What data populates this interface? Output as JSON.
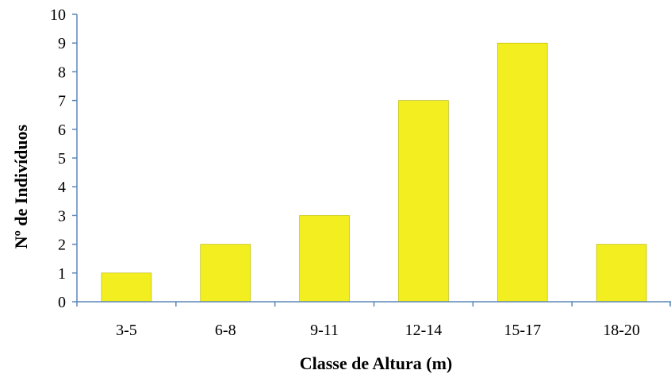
{
  "chart_data": {
    "type": "bar",
    "categories": [
      "3-5",
      "6-8",
      "9-11",
      "12-14",
      "15-17",
      "18-20"
    ],
    "values": [
      1,
      2,
      3,
      7,
      9,
      2
    ],
    "title": "",
    "xlabel": "Classe de Altura (m)",
    "ylabel": "Nº de Indivíduos",
    "ylim": [
      0,
      10
    ],
    "y_ticks": [
      "0",
      "1",
      "2",
      "3",
      "4",
      "5",
      "6",
      "7",
      "8",
      "9",
      "10"
    ],
    "grid": false,
    "legend": "none",
    "colors": {
      "bar_fill": "#f2ee1f",
      "bar_stroke": "#b7b200",
      "axis": "#5b87b8",
      "text": "#000000"
    }
  }
}
